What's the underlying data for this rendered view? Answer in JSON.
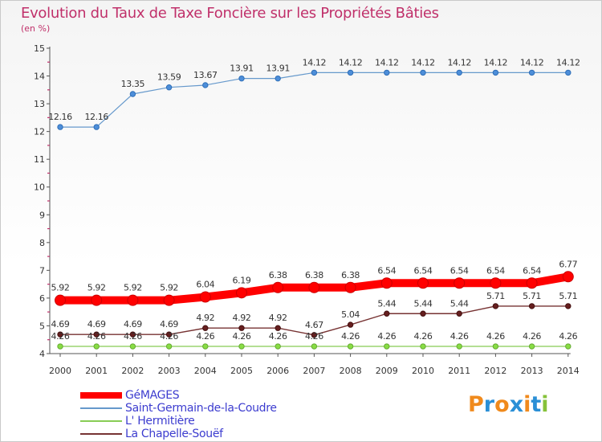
{
  "title": "Evolution du Taux de Taxe Foncière sur les Propriétés Bâties",
  "subtitle": "(en %)",
  "logo_text": "Proxiti",
  "colors": {
    "title": "#c0306a",
    "legend_text": "#3c3ccf",
    "axis": "#c0306a"
  },
  "chart_data": {
    "type": "line",
    "title": "Evolution du Taux de Taxe Foncière sur les Propriétés Bâties",
    "ylabel": "(en %)",
    "xlabel": "",
    "ylim": [
      4,
      15
    ],
    "yticks": [
      "4",
      "5",
      "6",
      "7",
      "8",
      "9",
      "10",
      "11",
      "12",
      "13",
      "14",
      "15"
    ],
    "x": [
      "2000",
      "2001",
      "2002",
      "2003",
      "2004",
      "2005",
      "2006",
      "2007",
      "2008",
      "2009",
      "2010",
      "2011",
      "2012",
      "2013",
      "2014"
    ],
    "grid": false,
    "legend_position": "bottom-left",
    "series": [
      {
        "name": "GéMAGES",
        "color": "#ff0000",
        "values": [
          5.92,
          5.92,
          5.92,
          5.92,
          6.04,
          6.19,
          6.38,
          6.38,
          6.38,
          6.54,
          6.54,
          6.54,
          6.54,
          6.54,
          6.77
        ],
        "labels": [
          "5.92",
          "5.92",
          "5.92",
          "5.92",
          "6.04",
          "6.19",
          "6.38",
          "6.38",
          "6.38",
          "6.54",
          "6.54",
          "6.54",
          "6.54",
          "6.54",
          "6.77"
        ]
      },
      {
        "name": "Saint-Germain-de-la-Coudre",
        "color": "#6699cc",
        "values": [
          12.16,
          12.16,
          13.35,
          13.59,
          13.67,
          13.91,
          13.91,
          14.12,
          14.12,
          14.12,
          14.12,
          14.12,
          14.12,
          14.12,
          14.12
        ],
        "labels": [
          "12.16",
          "12.16",
          "13.35",
          "13.59",
          "13.67",
          "13.91",
          "13.91",
          "14.12",
          "14.12",
          "14.12",
          "14.12",
          "14.12",
          "14.12",
          "14.12",
          "14.12"
        ]
      },
      {
        "name": "L' Hermitière",
        "color": "#88cc55",
        "values": [
          4.26,
          4.26,
          4.26,
          4.26,
          4.26,
          4.26,
          4.26,
          4.26,
          4.26,
          4.26,
          4.26,
          4.26,
          4.26,
          4.26,
          4.26
        ],
        "labels": [
          "4.26",
          "4.26",
          "4.26",
          "4.26",
          "4.26",
          "4.26",
          "4.26",
          "4.26",
          "4.26",
          "4.26",
          "4.26",
          "4.26",
          "4.26",
          "4.26",
          "4.26"
        ]
      },
      {
        "name": "La Chapelle-Souëf",
        "color": "#773333",
        "values": [
          4.69,
          4.69,
          4.69,
          4.69,
          4.92,
          4.92,
          4.92,
          4.67,
          5.04,
          5.44,
          5.44,
          5.44,
          5.71,
          5.71,
          5.71
        ],
        "labels": [
          "4.69",
          "4.69",
          "4.69",
          "4.69",
          "4.92",
          "4.92",
          "4.92",
          "4.67",
          "5.04",
          "5.44",
          "5.44",
          "5.44",
          "5.71",
          "5.71",
          "5.71"
        ]
      }
    ]
  }
}
